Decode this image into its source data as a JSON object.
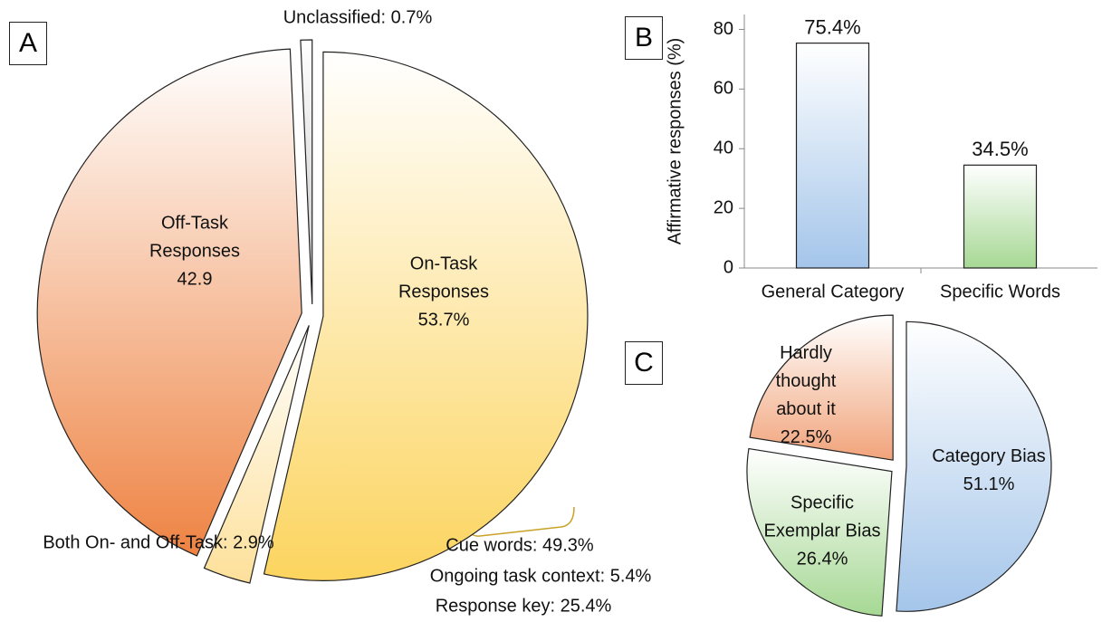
{
  "chart_data": [
    {
      "type": "pie",
      "panel": "A",
      "categories": [
        "On-Task Responses",
        "Both On- and Off-Task:",
        "Off-Task Responses",
        "Unclassified:"
      ],
      "values": [
        53.7,
        2.9,
        42.9,
        0.7
      ],
      "value_labels": [
        "53.7%",
        "2.9%",
        "42.9",
        "0.7%"
      ],
      "colors": [
        "#fcd45e",
        "#fde09a",
        "#ee8343",
        "#c4c4c4"
      ],
      "annotations": [
        "Cue words: 49.3%",
        "Ongoing task context: 5.4%",
        "Response key: 25.4%"
      ]
    },
    {
      "type": "bar",
      "panel": "B",
      "categories": [
        "General Category",
        "Specific Words"
      ],
      "values": [
        75.4,
        34.5
      ],
      "value_labels": [
        "75.4%",
        "34.5%"
      ],
      "colors": [
        "#a4c5ea",
        "#a6d894"
      ],
      "ylabel": "Affirmative responses (%)",
      "ylim": [
        0,
        85
      ],
      "yticks": [
        0,
        20,
        40,
        60,
        80
      ]
    },
    {
      "type": "pie",
      "panel": "C",
      "categories": [
        "Category Bias",
        "Specific Exemplar Bias",
        "Hardly thought about it"
      ],
      "values": [
        51.1,
        26.4,
        22.5
      ],
      "value_labels": [
        "51.1%",
        "26.4%",
        "22.5%"
      ],
      "colors": [
        "#a4c5ea",
        "#a6d894",
        "#f1a37a"
      ]
    }
  ]
}
